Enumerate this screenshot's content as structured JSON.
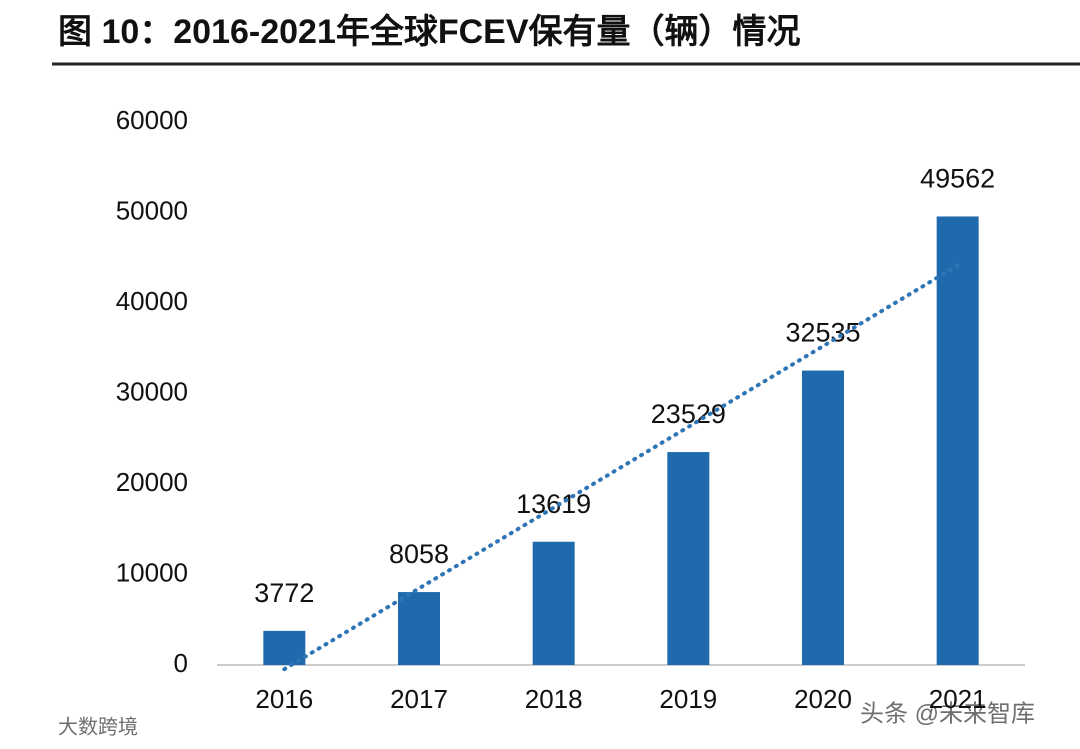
{
  "chart_data": {
    "type": "bar",
    "title": "图 10：2016-2021年全球FCEV保有量（辆）情况",
    "categories": [
      "2016",
      "2017",
      "2018",
      "2019",
      "2020",
      "2021"
    ],
    "values": [
      3772,
      8058,
      13619,
      23529,
      32535,
      49562
    ],
    "color": "#1f6aad",
    "trendline": true,
    "trendline_color": "#2e75b6",
    "ylim": [
      0,
      60000
    ],
    "yticks": [
      0,
      10000,
      20000,
      30000,
      40000,
      50000,
      60000
    ],
    "grid": false
  },
  "watermarks": [
    "头条 @未来智库",
    "大数跨境"
  ]
}
